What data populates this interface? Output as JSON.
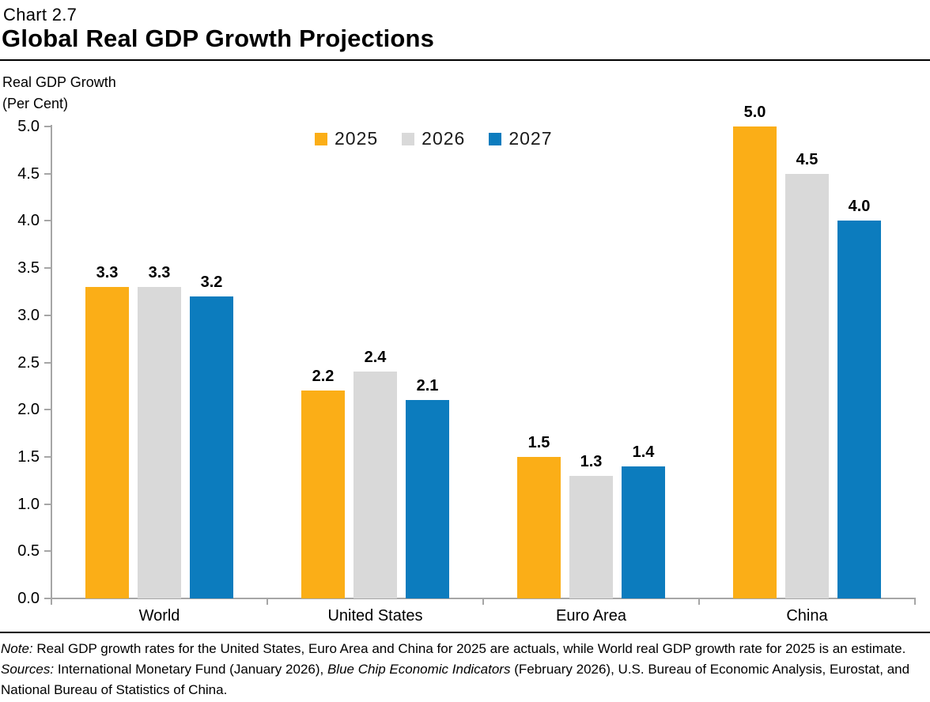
{
  "header": {
    "chart_number": "Chart 2.7",
    "title": "Global Real GDP Growth Projections"
  },
  "axis_title": {
    "line1": "Real GDP Growth",
    "line2": "(Per Cent)"
  },
  "chart_data": {
    "type": "bar",
    "title": "Global Real GDP Growth Projections",
    "categories": [
      "World",
      "United States",
      "Euro Area",
      "China"
    ],
    "series": [
      {
        "name": "2025",
        "color": "#FBAE17",
        "values": [
          3.3,
          2.2,
          1.5,
          5.0
        ]
      },
      {
        "name": "2026",
        "color": "#D9D9D9",
        "values": [
          3.3,
          2.4,
          1.3,
          4.5
        ]
      },
      {
        "name": "2027",
        "color": "#0C7CBE",
        "values": [
          3.2,
          2.1,
          1.4,
          4.0
        ]
      }
    ],
    "xlabel": "",
    "ylabel": "Real GDP Growth (Per Cent)",
    "ylim": [
      0.0,
      5.0
    ],
    "ytick_labels": [
      "0.0",
      "0.5",
      "1.0",
      "1.5",
      "2.0",
      "2.5",
      "3.0",
      "3.5",
      "4.0",
      "4.5",
      "5.0"
    ],
    "grid": false,
    "legend_position": "top-center",
    "value_labels": true,
    "value_label_format": "one-decimal"
  },
  "notes": {
    "note_line": [
      {
        "t": "Note:",
        "i": true
      },
      {
        "t": " Real GDP growth rates for the United States, Euro Area and China for 2025 are actuals, while World real GDP growth rate for 2025 is an estimate.",
        "i": false
      }
    ],
    "sources_line": [
      {
        "t": "Sources:",
        "i": true
      },
      {
        "t": " International Monetary Fund (January 2026), ",
        "i": false
      },
      {
        "t": "Blue Chip Economic Indicators",
        "i": true
      },
      {
        "t": " (February 2026), U.S. Bureau of Economic Analysis, Eurostat, and National Bureau of Statistics of China.",
        "i": false
      }
    ]
  },
  "colors": {
    "axis": "#A6A6A6",
    "text": "#000000",
    "rule": "#000000",
    "background": "#FFFFFF"
  }
}
